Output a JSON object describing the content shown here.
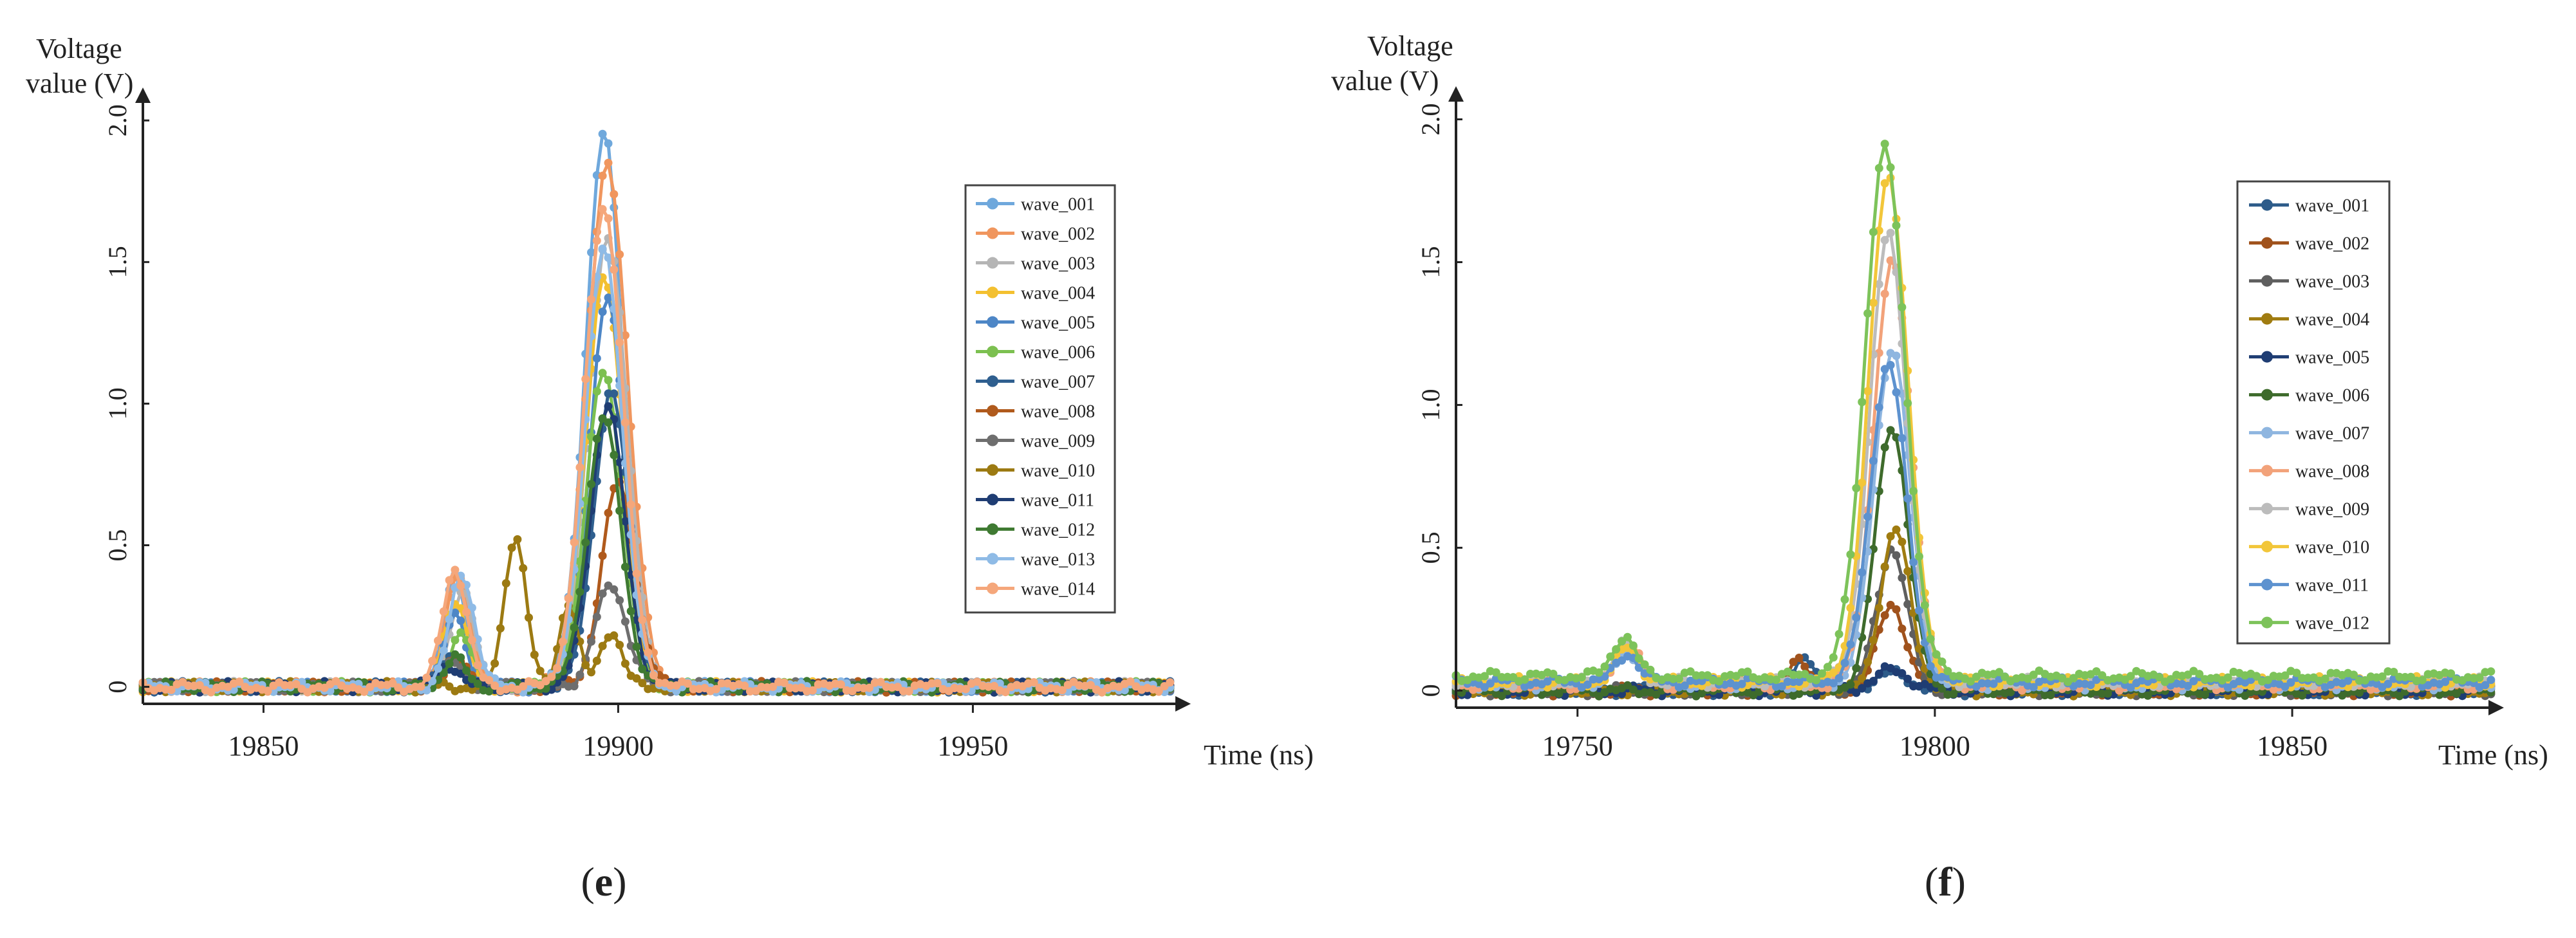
{
  "chart_data": [
    {
      "type": "line",
      "panel": "e",
      "caption": "(e)",
      "title": "",
      "xlabel": "Time (ns)",
      "ylabel": [
        "Voltage",
        "value (V)"
      ],
      "xlim": [
        19833,
        19978
      ],
      "ylim": [
        -0.06,
        2.08
      ],
      "xticks": [
        19850,
        19900,
        19950
      ],
      "yticks": [
        0,
        0.5,
        1.0,
        1.5,
        2.0
      ],
      "ytick_labels": [
        "0",
        "0.5",
        "1.0",
        "1.5",
        "2.0"
      ],
      "grid": false,
      "legend_position": "right",
      "series": [
        {
          "name": "wave_001",
          "color": "#6fa8dc",
          "kind": "pulse",
          "baseline": 0.0,
          "peaks": [
            {
              "t": 19898,
              "a": 1.95,
              "w": 2.6
            },
            {
              "t": 19877,
              "a": 0.38,
              "w": 1.6
            }
          ]
        },
        {
          "name": "wave_002",
          "color": "#f0965e",
          "kind": "pulse",
          "baseline": 0.0,
          "peaks": [
            {
              "t": 19898.5,
              "a": 1.85,
              "w": 2.8
            },
            {
              "t": 19877.5,
              "a": 0.4,
              "w": 1.7
            }
          ]
        },
        {
          "name": "wave_003",
          "color": "#b5b5b5",
          "kind": "pulse",
          "baseline": 0.0,
          "peaks": [
            {
              "t": 19898.5,
              "a": 1.6,
              "w": 2.7
            },
            {
              "t": 19878,
              "a": 0.35,
              "w": 1.6
            }
          ]
        },
        {
          "name": "wave_004",
          "color": "#f3c030",
          "kind": "pulse",
          "baseline": 0.0,
          "peaks": [
            {
              "t": 19898,
              "a": 1.45,
              "w": 2.6
            },
            {
              "t": 19877,
              "a": 0.3,
              "w": 1.6
            }
          ]
        },
        {
          "name": "wave_005",
          "color": "#4d86c6",
          "kind": "pulse",
          "baseline": 0.0,
          "peaks": [
            {
              "t": 19898.5,
              "a": 1.37,
              "w": 2.5
            },
            {
              "t": 19877,
              "a": 0.25,
              "w": 1.5
            }
          ]
        },
        {
          "name": "wave_006",
          "color": "#7cc050",
          "kind": "pulse",
          "baseline": 0.0,
          "peaks": [
            {
              "t": 19898,
              "a": 1.12,
              "w": 2.5
            },
            {
              "t": 19878,
              "a": 0.2,
              "w": 1.5
            }
          ]
        },
        {
          "name": "wave_007",
          "color": "#2f5f8f",
          "kind": "pulse",
          "baseline": 0.0,
          "peaks": [
            {
              "t": 19899,
              "a": 1.05,
              "w": 2.4
            },
            {
              "t": 19876.5,
              "a": 0.12,
              "w": 1.5
            }
          ]
        },
        {
          "name": "wave_008",
          "color": "#b05a1c",
          "kind": "pulse",
          "baseline": 0.0,
          "peaks": [
            {
              "t": 19900,
              "a": 0.72,
              "w": 2.3
            },
            {
              "t": 19877,
              "a": 0.1,
              "w": 1.5
            }
          ]
        },
        {
          "name": "wave_009",
          "color": "#6e6e6e",
          "kind": "pulse",
          "baseline": 0.0,
          "peaks": [
            {
              "t": 19899,
              "a": 0.36,
              "w": 2.2
            },
            {
              "t": 19877,
              "a": 0.08,
              "w": 1.5
            }
          ]
        },
        {
          "name": "wave_010",
          "color": "#9c7a12",
          "kind": "pulse",
          "baseline": 0.0,
          "peaks": [
            {
              "t": 19885.5,
              "a": 0.54,
              "w": 1.5
            },
            {
              "t": 19893,
              "a": 0.3,
              "w": 1.3
            },
            {
              "t": 19899,
              "a": 0.2,
              "w": 1.5
            }
          ]
        },
        {
          "name": "wave_011",
          "color": "#1f3d73",
          "kind": "pulse",
          "baseline": 0.0,
          "peaks": [
            {
              "t": 19898.5,
              "a": 1.0,
              "w": 2.4
            },
            {
              "t": 19876,
              "a": 0.08,
              "w": 1.5
            }
          ]
        },
        {
          "name": "wave_012",
          "color": "#3f7a32",
          "kind": "pulse",
          "baseline": 0.0,
          "peaks": [
            {
              "t": 19898,
              "a": 0.95,
              "w": 2.4
            },
            {
              "t": 19877,
              "a": 0.1,
              "w": 1.5
            }
          ]
        },
        {
          "name": "wave_013",
          "color": "#8fbbe6",
          "kind": "pulse",
          "baseline": 0.0,
          "peaks": [
            {
              "t": 19898,
              "a": 1.55,
              "w": 2.6
            },
            {
              "t": 19878,
              "a": 0.4,
              "w": 1.7
            }
          ]
        },
        {
          "name": "wave_014",
          "color": "#f5a77b",
          "kind": "pulse",
          "baseline": 0.0,
          "peaks": [
            {
              "t": 19898,
              "a": 1.7,
              "w": 2.7
            },
            {
              "t": 19877,
              "a": 0.42,
              "w": 1.7
            }
          ]
        }
      ]
    },
    {
      "type": "line",
      "panel": "f",
      "caption": "(f)",
      "title": "",
      "xlabel": "Time (ns)",
      "ylabel": [
        "Voltage",
        "value (V)"
      ],
      "xlim": [
        19733,
        19878
      ],
      "ylim": [
        -0.06,
        2.08
      ],
      "xticks": [
        19750,
        19800,
        19850
      ],
      "yticks": [
        0,
        0.5,
        1.0,
        1.5,
        2.0
      ],
      "ytick_labels": [
        "0",
        "0.5",
        "1.0",
        "1.5",
        "2.0"
      ],
      "grid": false,
      "legend_position": "right",
      "series": [
        {
          "name": "wave_001",
          "color": "#2e5c8a",
          "kind": "pulse",
          "baseline": 0.0,
          "peaks": [
            {
              "t": 19794,
              "a": 0.06,
              "w": 2.5
            },
            {
              "t": 19782,
              "a": 0.12,
              "w": 1.4
            }
          ]
        },
        {
          "name": "wave_002",
          "color": "#a0521c",
          "kind": "pulse",
          "baseline": 0.0,
          "peaks": [
            {
              "t": 19794,
              "a": 0.3,
              "w": 2.0
            },
            {
              "t": 19781,
              "a": 0.12,
              "w": 1.4
            }
          ]
        },
        {
          "name": "wave_003",
          "color": "#5f5f5f",
          "kind": "pulse",
          "baseline": 0.0,
          "peaks": [
            {
              "t": 19794,
              "a": 0.5,
              "w": 2.1
            }
          ]
        },
        {
          "name": "wave_004",
          "color": "#a07c10",
          "kind": "pulse",
          "baseline": 0.0,
          "peaks": [
            {
              "t": 19794.5,
              "a": 0.56,
              "w": 2.1
            }
          ]
        },
        {
          "name": "wave_005",
          "color": "#1f3d73",
          "kind": "pulse",
          "baseline": 0.0,
          "peaks": [
            {
              "t": 19794,
              "a": 0.07,
              "w": 2.5
            }
          ]
        },
        {
          "name": "wave_006",
          "color": "#3e6b2c",
          "kind": "pulse",
          "baseline": 0.0,
          "peaks": [
            {
              "t": 19794,
              "a": 0.93,
              "w": 2.3
            }
          ]
        },
        {
          "name": "wave_007",
          "color": "#8fb6e0",
          "kind": "pulse",
          "baseline": 0.02,
          "peaks": [
            {
              "t": 19794,
              "a": 1.18,
              "w": 2.5
            },
            {
              "t": 19757,
              "a": 0.12,
              "w": 1.6
            }
          ]
        },
        {
          "name": "wave_008",
          "color": "#f2a27a",
          "kind": "pulse",
          "baseline": 0.02,
          "peaks": [
            {
              "t": 19794,
              "a": 1.48,
              "w": 2.6
            },
            {
              "t": 19757,
              "a": 0.16,
              "w": 1.6
            }
          ]
        },
        {
          "name": "wave_009",
          "color": "#bcbcbc",
          "kind": "pulse",
          "baseline": 0.03,
          "peaks": [
            {
              "t": 19793.5,
              "a": 1.57,
              "w": 2.6
            },
            {
              "t": 19756.5,
              "a": 0.14,
              "w": 1.6
            }
          ]
        },
        {
          "name": "wave_010",
          "color": "#f2c63a",
          "kind": "pulse",
          "baseline": 0.03,
          "peaks": [
            {
              "t": 19793.5,
              "a": 1.78,
              "w": 2.7
            },
            {
              "t": 19757,
              "a": 0.12,
              "w": 1.6
            }
          ]
        },
        {
          "name": "wave_011",
          "color": "#5d92cf",
          "kind": "pulse",
          "baseline": 0.03,
          "peaks": [
            {
              "t": 19793.5,
              "a": 1.12,
              "w": 2.5
            },
            {
              "t": 19757,
              "a": 0.1,
              "w": 1.6
            }
          ]
        },
        {
          "name": "wave_012",
          "color": "#7dc35a",
          "kind": "pulse",
          "baseline": 0.05,
          "peaks": [
            {
              "t": 19793,
              "a": 1.85,
              "w": 2.8
            },
            {
              "t": 19756.5,
              "a": 0.14,
              "w": 1.6
            }
          ]
        }
      ]
    }
  ]
}
